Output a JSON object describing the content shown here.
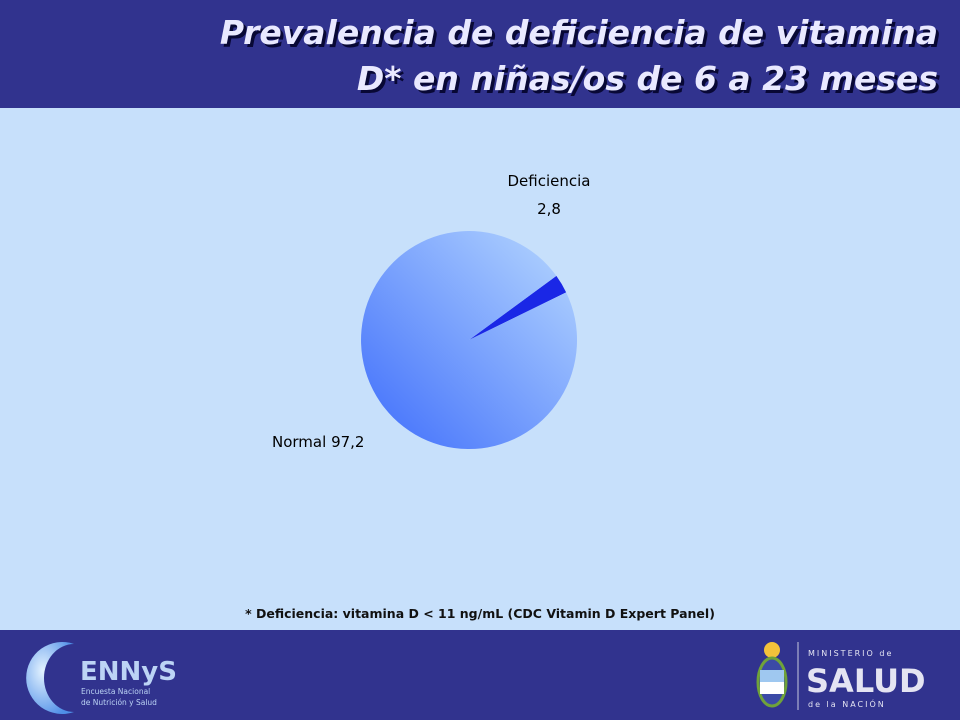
{
  "header": {
    "title_line1": "Prevalencia de deficiencia de vitamina",
    "title_line2": "D* en niñas/os de 6 a 23 meses"
  },
  "chart_data": {
    "type": "pie",
    "slices": [
      {
        "label": "Deficiencia",
        "value": 2.8,
        "value_text": "2,8",
        "color": "#1a27e6"
      },
      {
        "label": "Normal",
        "value": 97.2,
        "value_text": "97,2",
        "color": "#7aa7ff"
      }
    ]
  },
  "footnote": "* Deficiencia: vitamina D < 11 ng/mL (CDC Vitamin D Expert Panel)",
  "footer": {
    "ennys_logo": {
      "name": "ENNyS",
      "subtitle_line1": "Encuesta Nacional",
      "subtitle_line2": "de Nutrición y Salud"
    },
    "ministry_logo": {
      "line1": "MINISTERIO de",
      "line2": "SALUD",
      "line3": "de la NACIÓN"
    }
  },
  "colors": {
    "header_bg": "#31338e",
    "page_bg": "#c7e0fb",
    "title_text": "#e9e9ff"
  }
}
